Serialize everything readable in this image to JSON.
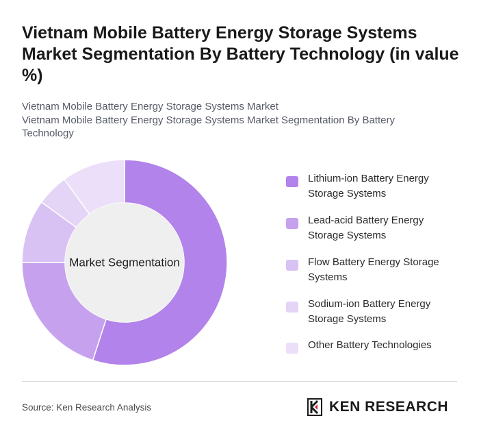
{
  "title": "Vietnam Mobile Battery Energy Storage Systems Market Segmentation By Battery Technology (in value %)",
  "subtitle_lines": [
    "Vietnam Mobile Battery Energy Storage Systems Market",
    "Vietnam Mobile Battery Energy Storage Systems Market Segmentation By Battery Technology"
  ],
  "chart_data": {
    "type": "pie",
    "donut": true,
    "center_label": "Market Segmentation",
    "categories": [
      "Lithium-ion Battery Energy Storage Systems",
      "Lead-acid Battery Energy Storage Systems",
      "Flow Battery Energy Storage Systems",
      "Sodium-ion Battery Energy Storage Systems",
      "Other Battery Technologies"
    ],
    "values": [
      55,
      20,
      10,
      5,
      10
    ],
    "colors": [
      "#b283ea",
      "#c6a2ee",
      "#d8c2f3",
      "#e4d4f6",
      "#ecdff9"
    ],
    "legend_position": "right"
  },
  "legend_items": [
    {
      "label": "Lithium-ion Battery Energy Storage Systems",
      "color": "#b283ea"
    },
    {
      "label": "Lead-acid Battery Energy Storage Systems",
      "color": "#c6a2ee"
    },
    {
      "label": "Flow Battery Energy Storage Systems",
      "color": "#d8c2f3"
    },
    {
      "label": "Sodium-ion Battery Energy Storage Systems",
      "color": "#e4d4f6"
    },
    {
      "label": "Other Battery Technologies",
      "color": "#ecdff9"
    }
  ],
  "footer": {
    "source": "Source: Ken Research Analysis",
    "logo_text": "KEN RESEARCH"
  }
}
